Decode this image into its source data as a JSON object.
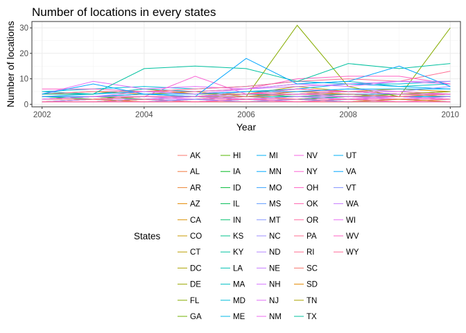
{
  "chart_data": {
    "type": "line",
    "title": "Number of locations in every states",
    "xlabel": "Year",
    "ylabel": "Number of locations",
    "xlim": [
      2001.8,
      2010.2
    ],
    "ylim": [
      -1,
      32.5
    ],
    "xticks": [
      2002,
      2004,
      2006,
      2008,
      2010
    ],
    "yticks": [
      0,
      10,
      20,
      30
    ],
    "grid": true,
    "legend_title": "States",
    "legend_position": "bottom",
    "x": [
      2002,
      2003,
      2004,
      2005,
      2006,
      2007,
      2008,
      2009,
      2010
    ],
    "series": [
      {
        "name": "AK",
        "color": "#F8766D",
        "values": [
          null,
          null,
          1,
          1,
          null,
          1,
          1,
          1,
          1
        ]
      },
      {
        "name": "AL",
        "color": "#F2793D",
        "values": [
          1,
          2,
          1,
          2,
          3,
          2,
          3,
          4,
          3
        ]
      },
      {
        "name": "AR",
        "color": "#EA8331",
        "values": [
          1,
          2,
          1,
          1,
          2,
          2,
          3,
          2,
          3
        ]
      },
      {
        "name": "AZ",
        "color": "#E38900",
        "values": [
          2,
          3,
          4,
          3,
          5,
          6,
          5,
          4,
          4
        ]
      },
      {
        "name": "CA",
        "color": "#D89000",
        "values": [
          1,
          2,
          3,
          3,
          4,
          6,
          5,
          6,
          5
        ]
      },
      {
        "name": "CO",
        "color": "#C99800",
        "values": [
          4,
          4,
          6,
          4,
          4,
          7,
          5,
          5,
          4
        ]
      },
      {
        "name": "CT",
        "color": "#BB9D00",
        "values": [
          4,
          5,
          4,
          5,
          3,
          5,
          4,
          3,
          4
        ]
      },
      {
        "name": "DC",
        "color": "#ABA300",
        "values": [
          1,
          1,
          1,
          1,
          1,
          1,
          1,
          1,
          1
        ]
      },
      {
        "name": "DE",
        "color": "#9AA800",
        "values": [
          2,
          2,
          3,
          3,
          2,
          2,
          2,
          2,
          2
        ]
      },
      {
        "name": "FL",
        "color": "#86AC00",
        "values": [
          1,
          1,
          2,
          2,
          3,
          31,
          7,
          3,
          30
        ]
      },
      {
        "name": "GA",
        "color": "#6FB000",
        "values": [
          1,
          1,
          2,
          2,
          2,
          2,
          3,
          4,
          5
        ]
      },
      {
        "name": "HI",
        "color": "#53B400",
        "values": [
          1,
          1,
          1,
          1,
          1,
          2,
          1,
          1,
          1
        ]
      },
      {
        "name": "IA",
        "color": "#00B81F",
        "values": [
          2,
          3,
          2,
          3,
          2,
          3,
          4,
          3,
          2
        ]
      },
      {
        "name": "ID",
        "color": "#00BA38",
        "values": [
          1,
          1,
          2,
          1,
          2,
          1,
          2,
          2,
          1
        ]
      },
      {
        "name": "IL",
        "color": "#00BC56",
        "values": [
          3,
          2,
          3,
          3,
          4,
          4,
          5,
          4,
          4
        ]
      },
      {
        "name": "IN",
        "color": "#00BE6C",
        "values": [
          2,
          2,
          3,
          3,
          4,
          3,
          4,
          3,
          3
        ]
      },
      {
        "name": "KS",
        "color": "#00C08B",
        "values": [
          1,
          1,
          2,
          2,
          2,
          2,
          3,
          3,
          2
        ]
      },
      {
        "name": "KY",
        "color": "#00C19F",
        "values": [
          1,
          2,
          2,
          2,
          3,
          3,
          3,
          3,
          4
        ]
      },
      {
        "name": "LA",
        "color": "#00C0B1",
        "values": [
          1,
          1,
          2,
          2,
          2,
          3,
          2,
          3,
          3
        ]
      },
      {
        "name": "MA",
        "color": "#00BFC4",
        "values": [
          5,
          4,
          6,
          5,
          6,
          8,
          9,
          7,
          8
        ]
      },
      {
        "name": "MD",
        "color": "#00BCD8",
        "values": [
          5,
          6,
          7,
          6,
          7,
          9,
          8,
          8,
          9
        ]
      },
      {
        "name": "ME",
        "color": "#00B8E7",
        "values": [
          1,
          1,
          2,
          1,
          2,
          2,
          1,
          2,
          1
        ]
      },
      {
        "name": "MI",
        "color": "#00B0F6",
        "values": [
          3,
          4,
          5,
          4,
          5,
          6,
          8,
          7,
          6
        ]
      },
      {
        "name": "MN",
        "color": "#00A9FF",
        "values": [
          2,
          3,
          3,
          3,
          3,
          4,
          4,
          3,
          3
        ]
      },
      {
        "name": "MO",
        "color": "#35A2FF",
        "values": [
          2,
          2,
          3,
          3,
          3,
          4,
          4,
          4,
          5
        ]
      },
      {
        "name": "MS",
        "color": "#619CFF",
        "values": [
          1,
          1,
          1,
          2,
          1,
          2,
          2,
          2,
          2
        ]
      },
      {
        "name": "MT",
        "color": "#8294FF",
        "values": [
          1,
          1,
          1,
          1,
          1,
          2,
          1,
          2,
          1
        ]
      },
      {
        "name": "NC",
        "color": "#9D8CFF",
        "values": [
          3,
          3,
          4,
          3,
          5,
          5,
          6,
          5,
          7
        ]
      },
      {
        "name": "ND",
        "color": "#B385FF",
        "values": [
          1,
          1,
          1,
          1,
          1,
          1,
          2,
          1,
          1
        ]
      },
      {
        "name": "NE",
        "color": "#C77CFF",
        "values": [
          1,
          2,
          2,
          2,
          2,
          3,
          2,
          3,
          2
        ]
      },
      {
        "name": "NH",
        "color": "#D575FE",
        "values": [
          2,
          2,
          2,
          3,
          2,
          3,
          3,
          2,
          3
        ]
      },
      {
        "name": "NJ",
        "color": "#E26EF7",
        "values": [
          4,
          9,
          6,
          7,
          6,
          8,
          7,
          9,
          8
        ]
      },
      {
        "name": "NM",
        "color": "#EC69EF",
        "values": [
          1,
          1,
          1,
          2,
          2,
          2,
          2,
          3,
          2
        ]
      },
      {
        "name": "NV",
        "color": "#F564E3",
        "values": [
          2,
          2,
          3,
          2,
          3,
          4,
          3,
          3,
          4
        ]
      },
      {
        "name": "NY",
        "color": "#FA62D4",
        "values": [
          3,
          3,
          3,
          11,
          4,
          6,
          5,
          5,
          4
        ]
      },
      {
        "name": "OH",
        "color": "#FF61C3",
        "values": [
          6,
          6,
          5,
          5,
          6,
          10,
          11,
          11,
          8
        ]
      },
      {
        "name": "OK",
        "color": "#FF64B0",
        "values": [
          1,
          1,
          1,
          2,
          2,
          2,
          2,
          2,
          2
        ]
      },
      {
        "name": "OR",
        "color": "#FF689F",
        "values": [
          2,
          2,
          3,
          3,
          4,
          5,
          5,
          4,
          4
        ]
      },
      {
        "name": "PA",
        "color": "#FF6C91",
        "values": [
          4,
          5,
          5,
          6,
          7,
          9,
          10,
          9,
          13
        ]
      },
      {
        "name": "RI",
        "color": "#FF6C91",
        "values": [
          1,
          1,
          2,
          1,
          2,
          1,
          2,
          1,
          2
        ]
      },
      {
        "name": "SC",
        "color": "#F8766D",
        "values": [
          2,
          2,
          3,
          3,
          3,
          4,
          4,
          3,
          4
        ]
      },
      {
        "name": "SD",
        "color": "#E38900",
        "values": [
          1,
          1,
          1,
          1,
          1,
          1,
          1,
          2,
          1
        ]
      },
      {
        "name": "TN",
        "color": "#ABA300",
        "values": [
          2,
          3,
          3,
          3,
          4,
          4,
          5,
          4,
          5
        ]
      },
      {
        "name": "TX",
        "color": "#00C19F",
        "values": [
          4,
          4,
          14,
          15,
          14,
          9,
          16,
          14,
          16
        ]
      },
      {
        "name": "UT",
        "color": "#00B0F6",
        "values": [
          3,
          3,
          4,
          4,
          5,
          5,
          6,
          6,
          6
        ]
      },
      {
        "name": "VA",
        "color": "#00A5FF",
        "values": [
          4,
          8,
          4,
          3,
          18,
          8,
          9,
          15,
          7
        ]
      },
      {
        "name": "VT",
        "color": "#8294FF",
        "values": [
          1,
          1,
          1,
          2,
          1,
          1,
          2,
          1,
          1
        ]
      },
      {
        "name": "WA",
        "color": "#C77CFF",
        "values": [
          2,
          3,
          5,
          4,
          6,
          7,
          8,
          9,
          9
        ]
      },
      {
        "name": "WI",
        "color": "#E76BF3",
        "values": [
          2,
          3,
          3,
          3,
          4,
          4,
          5,
          4,
          4
        ]
      },
      {
        "name": "WV",
        "color": "#FF61C3",
        "values": [
          1,
          1,
          1,
          1,
          2,
          1,
          1,
          1,
          1
        ]
      },
      {
        "name": "WY",
        "color": "#FF6A98",
        "values": [
          1,
          1,
          1,
          1,
          1,
          1,
          2,
          1,
          1
        ]
      }
    ]
  }
}
